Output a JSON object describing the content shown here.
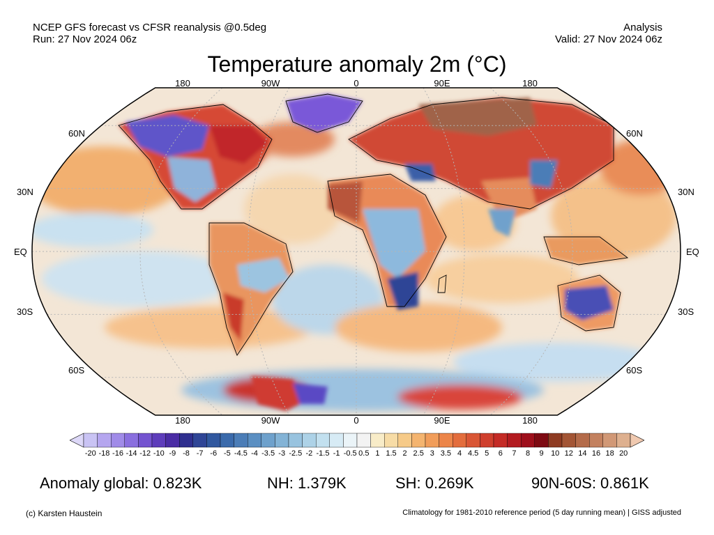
{
  "header": {
    "left_line1": "NCEP GFS forecast vs CFSR reanalysis @0.5deg",
    "left_line2": "Run: 27 Nov 2024 06z",
    "right_line1": "Analysis",
    "right_line2": "Valid: 27 Nov 2024 06z"
  },
  "title": "Temperature anomaly 2m (°C)",
  "map": {
    "projection": "Robinson",
    "lon_labels_top": [
      "180",
      "90W",
      "0",
      "90E",
      "180"
    ],
    "lon_labels_bottom": [
      "180",
      "90W",
      "0",
      "90E",
      "180"
    ],
    "lat_labels_left": [
      "60N",
      "30N",
      "EQ",
      "30S",
      "60S"
    ],
    "lat_labels_right": [
      "60N",
      "30N",
      "EQ",
      "30S",
      "60S"
    ]
  },
  "colorbar": {
    "labels": [
      "-20",
      "-18",
      "-16",
      "-14",
      "-12",
      "-10",
      "-9",
      "-8",
      "-7",
      "-6",
      "-5",
      "-4.5",
      "-4",
      "-3.5",
      "-3",
      "-2.5",
      "-2",
      "-1.5",
      "-1",
      "-0.5",
      "0.5",
      "1",
      "1.5",
      "2",
      "2.5",
      "3",
      "3.5",
      "4",
      "4.5",
      "5",
      "6",
      "7",
      "8",
      "9",
      "10",
      "12",
      "14",
      "16",
      "18",
      "20"
    ],
    "colors": [
      "#c9c3f4",
      "#b5a6ef",
      "#a08be8",
      "#8a6fdf",
      "#7454d0",
      "#5e3dbb",
      "#4a2ca4",
      "#2f2f8f",
      "#2f4596",
      "#31589f",
      "#3a6aab",
      "#4b7db7",
      "#5b8fc2",
      "#6ea1cc",
      "#83b3d6",
      "#98c3df",
      "#add2e7",
      "#c2e0ef",
      "#d7ebf5",
      "#ebf4f8",
      "#f3f3f3",
      "#f8ecc8",
      "#f7dca6",
      "#f6ca88",
      "#f4b46f",
      "#f19d5a",
      "#ec8549",
      "#e36d3d",
      "#d95635",
      "#cf3f2d",
      "#c42b26",
      "#b31b20",
      "#9e0f1b",
      "#7e0a12",
      "#8e3b22",
      "#a35535",
      "#b46b4a",
      "#c3815f",
      "#d19876",
      "#deb08f"
    ],
    "under_color": "#ddd8f8",
    "over_color": "#f0c9b0"
  },
  "stats": {
    "global": "Anomaly global: 0.823K",
    "nh": "NH: 1.379K",
    "sh": "SH: 0.269K",
    "arctic": "90N-60S: 0.861K"
  },
  "footer": {
    "left": "(c) Karsten Haustein",
    "right": "Climatology for 1981-2010 reference period (5 day running mean) | GISS adjusted"
  }
}
